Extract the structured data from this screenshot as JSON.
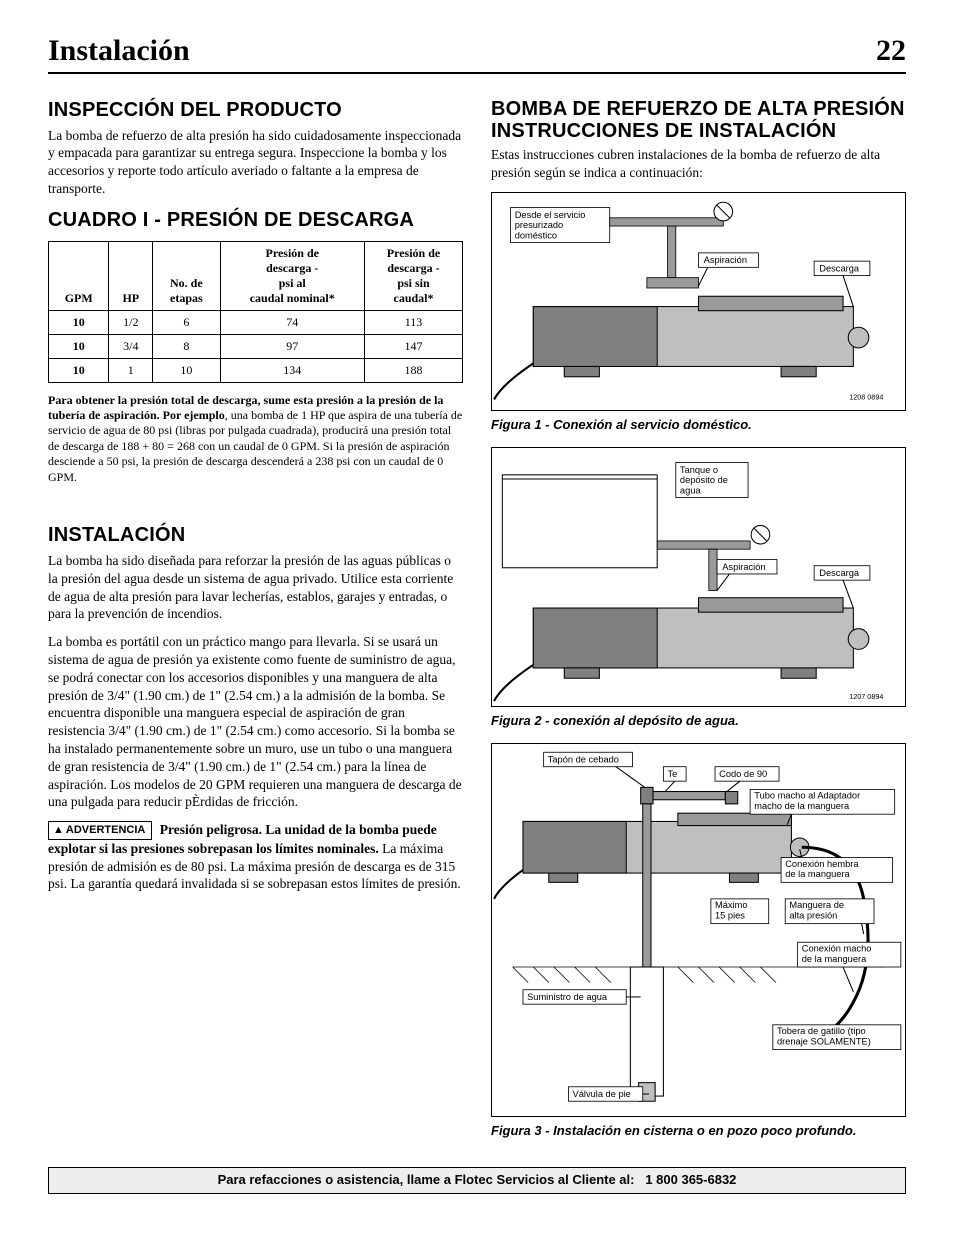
{
  "page": {
    "title": "Instalación",
    "number": "22"
  },
  "left": {
    "inspeccion": {
      "heading": "INSPECCIÓN DEL PRODUCTO",
      "body": "La bomba de refuerzo de alta presión ha sido cuidadosamente inspeccionada y empacada para garantizar su entrega segura. Inspeccione la bomba y los accesorios y reporte todo artículo averiado o faltante a la empresa de transporte."
    },
    "cuadro": {
      "heading": "CUADRO I - PRESIÓN DE DESCARGA",
      "columns": [
        "GPM",
        "HP",
        "No. de\netapas",
        "Presión de\ndescarga -\npsi al\ncaudal nominal*",
        "Presión de\ndescarga -\npsi sin\ncaudal*"
      ],
      "rows": [
        [
          "10",
          "1/2",
          "6",
          "74",
          "113"
        ],
        [
          "10",
          "3/4",
          "8",
          "97",
          "147"
        ],
        [
          "10",
          "1",
          "10",
          "134",
          "188"
        ]
      ],
      "footnote_bold": "Para obtener la presión total de descarga, sume esta presión a la presión de la tubería de aspiración. Por ejemplo",
      "footnote_rest": ", una bomba de 1 HP que aspira de una tubería de servicio de agua de 80 psi (libras por pulgada cuadrada), producirá una presión total de descarga de 188 + 80 = 268 con un caudal de 0 GPM. Si la presión de aspiración desciende a 50 psi, la presión de descarga descenderá a 238 psi con un caudal de 0 GPM."
    },
    "instalacion": {
      "heading": "INSTALACIÓN",
      "p1": "La bomba ha sido diseñada para reforzar la presión de las aguas públicas o la presión del agua desde un sistema de agua privado. Utilice esta corriente de agua de alta presión para lavar lecherías, establos, garajes y entradas, o para la prevención de incendios.",
      "p2": "La bomba es portátil con un práctico mango para llevarla. Si se usará un sistema de agua de presión ya existente como fuente de suministro de agua, se podrá conectar con los accesorios disponibles y una manguera de alta presión de 3/4\" (1.90 cm.) de 1\" (2.54 cm.) a la admisión de la bomba. Se encuentra disponible una manguera especial de aspiración de gran resistencia 3/4\" (1.90 cm.) de 1\" (2.54 cm.) como accesorio. Si la bomba se ha instalado permanentemente sobre un muro, use un tubo o una manguera de gran resistencia de 3/4\" (1.90 cm.) de 1\" (2.54 cm.) para la línea de aspiración. Los modelos de 20 GPM requieren una manguera de descarga de una pulgada para reducir pÈrdidas de fricción.",
      "warn_label": "ADVERTENCIA",
      "warn_bold": "Presión peligrosa. La unidad de la bomba puede explotar si las presiones sobrepasan los límites nominales.",
      "warn_rest": " La máxima presión de admisión es de 80 psi. La máxima presión de descarga es de 315 psi. La garantía quedará invalidada si se sobrepasan estos límites de presión."
    }
  },
  "right": {
    "heading": "BOMBA DE REFUERZO DE ALTA PRESIÓN INSTRUCCIONES DE INSTALACIÓN",
    "intro": "Estas instrucciones cubren instalaciones de la bomba de refuerzo de alta presión según se indica a continuación:",
    "fig1": {
      "caption": "Figura 1 - Conexión al servicio doméstico.",
      "labels": {
        "source": "Desde el servicio\npresurizado\ndoméstico",
        "aspiracion": "Aspiración",
        "descarga": "Descarga",
        "code": "1208 0894"
      }
    },
    "fig2": {
      "caption": "Figura 2 - conexión al depósito de agua.",
      "labels": {
        "tank": "Tanque o\ndepósito de\nagua",
        "aspiracion": "Aspiración",
        "descarga": "Descarga",
        "code": "1207 0894"
      }
    },
    "fig3": {
      "caption": "Figura 3 - Instalación en cisterna o en pozo poco profundo.",
      "labels": {
        "tapon": "Tapón de cebado",
        "te": "Te",
        "codo": "Codo de 90",
        "tubo": "Tubo macho al Adaptador\nmacho de la manguera",
        "hembra": "Conexión hembra\nde la manguera",
        "max": "Máximo\n15 pies",
        "manguera": "Manguera de\nalta presión",
        "macho": "Conexión macho\nde la manguera",
        "suministro": "Suministro de agua",
        "tobera": "Tobera de gatillo (tipo\ndrenaje SOLAMENTE)",
        "valvula": "Válvula de pie"
      }
    }
  },
  "footer": {
    "text_a": "Para refacciones o asistencia, llame a Flotec Servicios al Cliente al:",
    "text_b": "1 800 365-6832"
  },
  "colors": {
    "pump_light": "#bfbfbf",
    "pump_dark": "#808080",
    "pipe": "#9a9a9a",
    "bg": "#ffffff",
    "border": "#000000"
  }
}
